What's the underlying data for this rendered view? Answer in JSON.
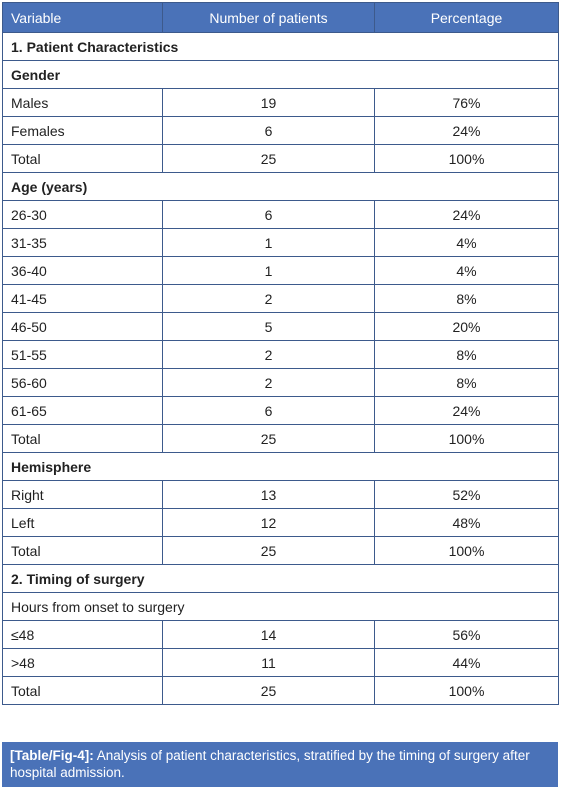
{
  "header": {
    "variable": "Variable",
    "patients": "Number of patients",
    "percentage": "Percentage"
  },
  "rows": [
    {
      "type": "section",
      "label": "1. Patient Characteristics"
    },
    {
      "type": "section",
      "label": "Gender"
    },
    {
      "type": "data",
      "label": "Males",
      "n": "19",
      "pct": "76%"
    },
    {
      "type": "data",
      "label": "Females",
      "n": "6",
      "pct": "24%"
    },
    {
      "type": "data",
      "label": "Total",
      "n": "25",
      "pct": "100%"
    },
    {
      "type": "section",
      "label": "Age (years)"
    },
    {
      "type": "data",
      "label": "26-30",
      "n": "6",
      "pct": "24%"
    },
    {
      "type": "data",
      "label": "31-35",
      "n": "1",
      "pct": "4%"
    },
    {
      "type": "data",
      "label": "36-40",
      "n": "1",
      "pct": "4%"
    },
    {
      "type": "data",
      "label": "41-45",
      "n": "2",
      "pct": "8%"
    },
    {
      "type": "data",
      "label": "46-50",
      "n": "5",
      "pct": "20%"
    },
    {
      "type": "data",
      "label": "51-55",
      "n": "2",
      "pct": "8%"
    },
    {
      "type": "data",
      "label": "56-60",
      "n": "2",
      "pct": "8%"
    },
    {
      "type": "data",
      "label": "61-65",
      "n": "6",
      "pct": "24%"
    },
    {
      "type": "data",
      "label": "Total",
      "n": "25",
      "pct": "100%"
    },
    {
      "type": "section",
      "label": "Hemisphere"
    },
    {
      "type": "data",
      "label": "Right",
      "n": "13",
      "pct": "52%"
    },
    {
      "type": "data",
      "label": "Left",
      "n": "12",
      "pct": "48%"
    },
    {
      "type": "data",
      "label": "Total",
      "n": "25",
      "pct": "100%"
    },
    {
      "type": "section",
      "label": "2. Timing of surgery"
    },
    {
      "type": "plain",
      "label": "Hours from onset to surgery"
    },
    {
      "type": "data",
      "label": "≤48",
      "n": "14",
      "pct": "56%"
    },
    {
      "type": "data",
      "label": ">48",
      "n": "11",
      "pct": "44%"
    },
    {
      "type": "data",
      "label": "Total",
      "n": "25",
      "pct": "100%"
    }
  ],
  "caption": {
    "label": "[Table/Fig-4]:",
    "text": " Analysis of patient characteristics, stratified by the timing of surgery after hospital admission."
  },
  "colors": {
    "header_bg": "#4a72b8",
    "border": "#3d5a8c"
  }
}
